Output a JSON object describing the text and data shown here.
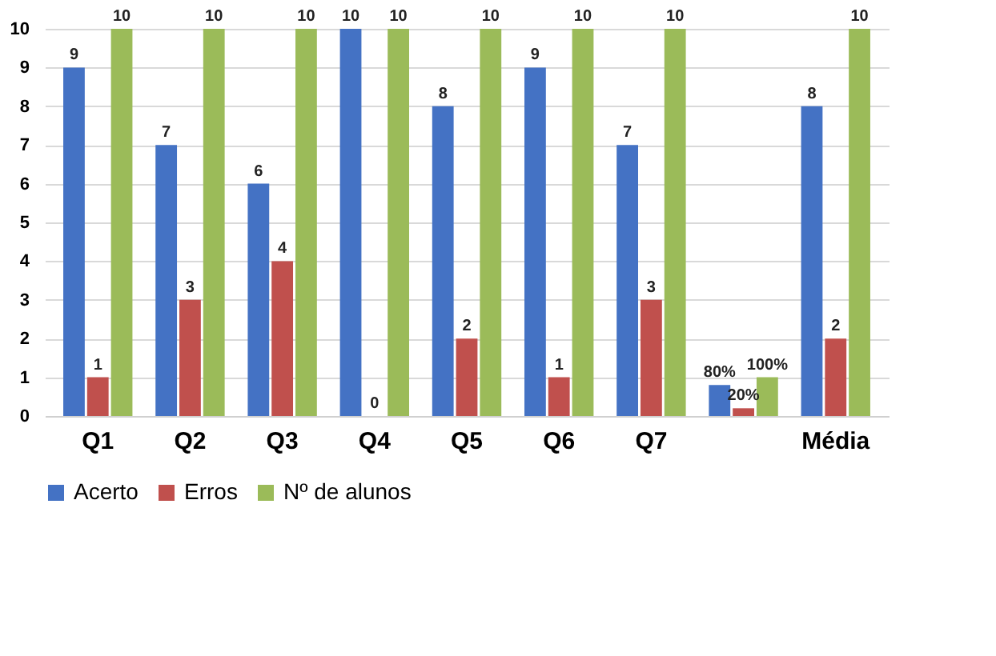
{
  "chart_data": {
    "type": "bar",
    "categories": [
      "Q1",
      "Q2",
      "Q3",
      "Q4",
      "Q5",
      "Q6",
      "Q7",
      null,
      "Média"
    ],
    "series": [
      {
        "name": "Acerto",
        "color": "#4472c4",
        "values": [
          9,
          7,
          6,
          10,
          8,
          9,
          7,
          0.8,
          8
        ],
        "value_labels": [
          "9",
          "7",
          "6",
          "10",
          "8",
          "9",
          "7",
          "80%",
          "8"
        ]
      },
      {
        "name": "Erros",
        "color": "#c0504d",
        "values": [
          1,
          3,
          4,
          0,
          2,
          1,
          3,
          0.2,
          2
        ],
        "value_labels": [
          "1",
          "3",
          "4",
          "0",
          "2",
          "1",
          "3",
          "20%",
          "2"
        ]
      },
      {
        "name": "Nº de alunos",
        "color": "#9bbb59",
        "values": [
          10,
          10,
          10,
          10,
          10,
          10,
          10,
          1,
          10
        ],
        "value_labels": [
          "10",
          "10",
          "10",
          "10",
          "10",
          "10",
          "10",
          "100%",
          "10"
        ]
      }
    ],
    "ylim": [
      0,
      10
    ],
    "yticks": [
      0,
      1,
      2,
      3,
      4,
      5,
      6,
      7,
      8,
      9,
      10
    ],
    "grid": "y",
    "legend": "bottom"
  }
}
